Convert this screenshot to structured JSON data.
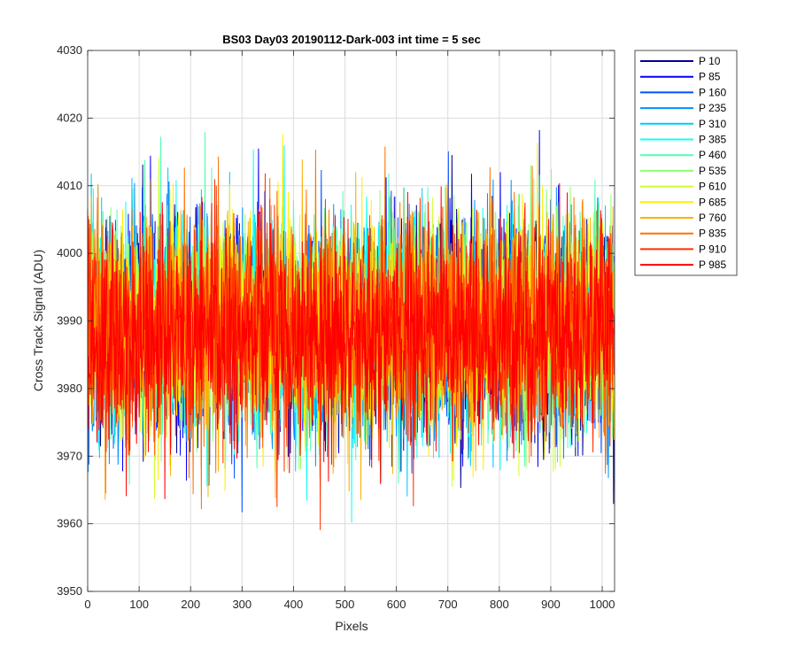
{
  "chart_data": {
    "type": "line",
    "title": "BS03 Day03 20190112-Dark-003 int time = 5 sec",
    "xlabel": "Pixels",
    "ylabel": "Cross Track Signal (ADU)",
    "xlim": [
      0,
      1024
    ],
    "ylim": [
      3950,
      4030
    ],
    "xticks": [
      0,
      100,
      200,
      300,
      400,
      500,
      600,
      700,
      800,
      900,
      1000
    ],
    "yticks": [
      3950,
      3960,
      3970,
      3980,
      3990,
      4000,
      4010,
      4020,
      4030
    ],
    "grid": true,
    "legend_position": "outside-right-top",
    "noise_model": {
      "mean": 3989,
      "sd": 8,
      "n_points": 1024
    },
    "series": [
      {
        "name": "P 10",
        "color": "#00008f",
        "mean": 3989
      },
      {
        "name": "P 85",
        "color": "#0000ff",
        "mean": 3989
      },
      {
        "name": "P 160",
        "color": "#0050ff",
        "mean": 3989
      },
      {
        "name": "P 235",
        "color": "#0090ff",
        "mean": 3989
      },
      {
        "name": "P 310",
        "color": "#00c8ff",
        "mean": 3989
      },
      {
        "name": "P 385",
        "color": "#10ffef",
        "mean": 3989
      },
      {
        "name": "P 460",
        "color": "#50ffaf",
        "mean": 3989
      },
      {
        "name": "P 535",
        "color": "#8fff70",
        "mean": 3989
      },
      {
        "name": "P 610",
        "color": "#cfff30",
        "mean": 3989
      },
      {
        "name": "P 685",
        "color": "#ffef00",
        "mean": 3989
      },
      {
        "name": "P 760",
        "color": "#ffb000",
        "mean": 3989
      },
      {
        "name": "P 835",
        "color": "#ff7000",
        "mean": 3989
      },
      {
        "name": "P 910",
        "color": "#ff3000",
        "mean": 3989
      },
      {
        "name": "P 985",
        "color": "#ff0000",
        "mean": 3988
      }
    ]
  }
}
